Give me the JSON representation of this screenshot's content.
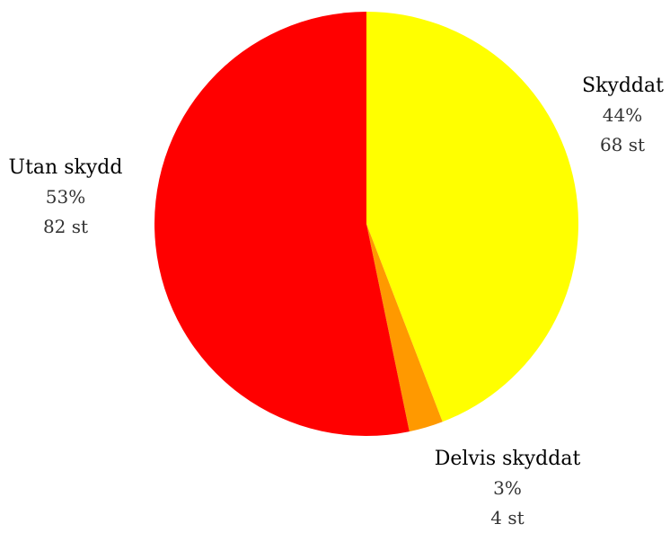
{
  "chart_data": {
    "type": "pie",
    "title": "",
    "unit": "st",
    "slices": [
      {
        "name": "Skyddat",
        "value": 68,
        "percent_label": "44%",
        "count_label": "68 st",
        "color": "#ffff00"
      },
      {
        "name": "Delvis skyddat",
        "value": 4,
        "percent_label": "3%",
        "count_label": "4 st",
        "color": "#ff9900"
      },
      {
        "name": "Utan skydd",
        "value": 82,
        "percent_label": "53%",
        "count_label": "82 st",
        "color": "#ff0000"
      }
    ],
    "legend": "none"
  }
}
